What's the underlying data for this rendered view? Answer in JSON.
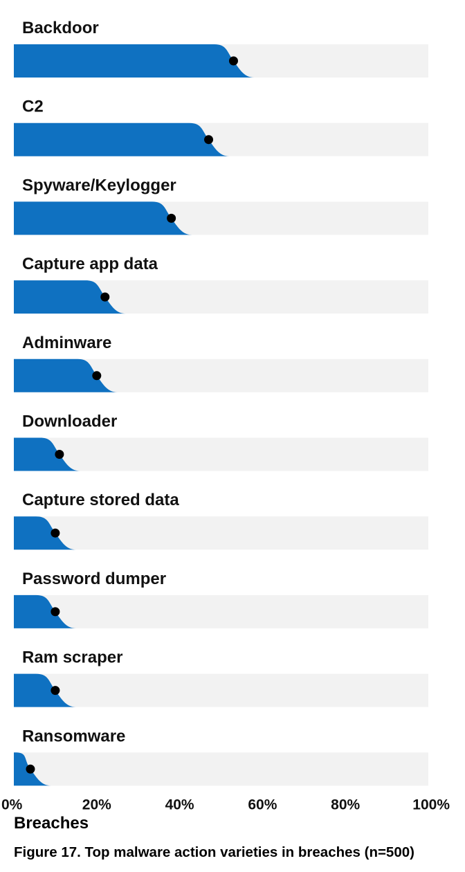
{
  "chart_data": {
    "type": "bar",
    "orientation": "horizontal",
    "categories": [
      "Backdoor",
      "C2",
      "Spyware/Keylogger",
      "Capture app data",
      "Adminware",
      "Downloader",
      "Capture stored data",
      "Password dumper",
      "Ram scraper",
      "Ransomware"
    ],
    "series": [
      {
        "values": [
          53,
          47,
          38,
          22,
          20,
          11,
          10,
          10,
          10,
          4
        ]
      }
    ],
    "xlabel": "Breaches",
    "ylabel": "",
    "xlim": [
      0,
      100
    ],
    "xticks": [
      "0%",
      "20%",
      "40%",
      "60%",
      "80%",
      "100%"
    ],
    "grid": false,
    "legend": "none",
    "caption": "Figure 17. Top malware action varieties in breaches (n=500)",
    "colors": {
      "bar": "#0f71c1",
      "track": "#f2f2f2",
      "marker": "#000000"
    }
  }
}
